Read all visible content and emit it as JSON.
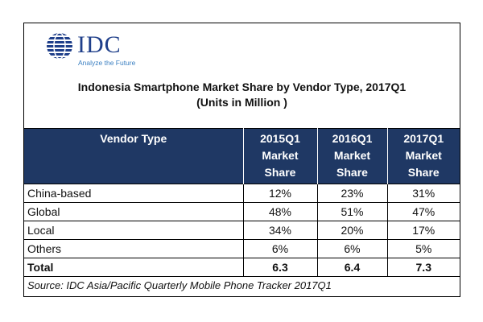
{
  "logo": {
    "brand": "IDC",
    "tagline": "Analyze the Future"
  },
  "colors": {
    "header_bg": "#1f3864",
    "header_text": "#ffffff",
    "logo_blue": "#1f3f8a"
  },
  "chart_data": {
    "type": "table",
    "title": "Indonesia Smartphone Market Share by Vendor Type, 2017Q1",
    "subtitle": "(Units in Million )",
    "columns": [
      {
        "label": "Vendor Type"
      },
      {
        "lines": [
          "2015Q1",
          "Market",
          "Share"
        ]
      },
      {
        "lines": [
          "2016Q1",
          "Market",
          "Share"
        ]
      },
      {
        "lines": [
          "2017Q1",
          "Market",
          "Share"
        ]
      }
    ],
    "rows": [
      {
        "vendor": "China-based",
        "values": [
          "12%",
          "23%",
          "31%"
        ]
      },
      {
        "vendor": "Global",
        "values": [
          "48%",
          "51%",
          "47%"
        ]
      },
      {
        "vendor": "Local",
        "values": [
          "34%",
          "20%",
          "17%"
        ]
      },
      {
        "vendor": "Others",
        "values": [
          "6%",
          "6%",
          "5%"
        ]
      }
    ],
    "total": {
      "label": "Total",
      "values": [
        "6.3",
        "6.4",
        "7.3"
      ]
    },
    "source": "Source: IDC Asia/Pacific Quarterly Mobile Phone Tracker 2017Q1"
  }
}
